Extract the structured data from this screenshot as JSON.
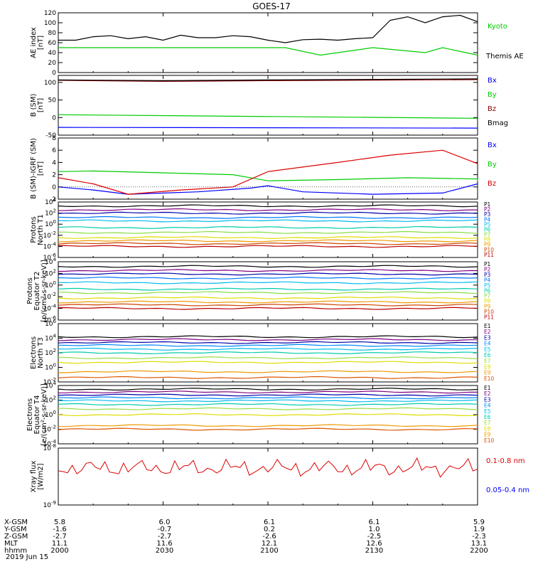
{
  "title": "GOES-17",
  "date_label": "2019 Jun 15",
  "ephemeris": {
    "rows": [
      "X-GSM",
      "Y-GSM",
      "Z-GSM",
      "MLT",
      "hhmm"
    ],
    "columns": [
      [
        "5.8",
        "-1.6",
        "-2.7",
        "11.1",
        "2000"
      ],
      [
        "6.0",
        "-0.7",
        "-2.7",
        "11.6",
        "2030"
      ],
      [
        "6.1",
        "0.2",
        "-2.6",
        "12.1",
        "2100"
      ],
      [
        "6.1",
        "1.0",
        "-2.5",
        "12.6",
        "2130"
      ],
      [
        "5.9",
        "1.9",
        "-2.3",
        "13.1",
        "2200"
      ]
    ]
  },
  "colors": {
    "black": "#000000",
    "green": "#00cc00",
    "blue": "#0000ff",
    "red": "#dd0000",
    "darkred": "#8b0000",
    "navy": "#000080",
    "purple": "#800080",
    "p_series": [
      "#000000",
      "#800080",
      "#0000aa",
      "#0077ff",
      "#00bbee",
      "#00ccaa",
      "#88dd44",
      "#dddd00",
      "#ee9900",
      "#cc4400",
      "#bb0000"
    ],
    "e_series": [
      "#000000",
      "#800080",
      "#0000aa",
      "#0088ff",
      "#00bbee",
      "#00ccaa",
      "#99dd44",
      "#dddd00",
      "#ee9900",
      "#dd5500",
      "#bb0000"
    ]
  },
  "chart_data": [
    {
      "type": "line",
      "ylabel": [
        "AE index",
        "[nT]"
      ],
      "ylim": [
        0,
        120
      ],
      "y_ticks": [
        "0",
        "20",
        "40",
        "60",
        "80",
        "100",
        "120"
      ],
      "x_range": [
        "2000",
        "2200"
      ],
      "series": [
        {
          "name": "Kyoto proxy AE",
          "x": [
            2000,
            2005,
            2010,
            2015,
            2020,
            2025,
            2030,
            2035,
            2040,
            2045,
            2050,
            2055,
            2100,
            2105,
            2110,
            2115,
            2120,
            2125,
            2130,
            2135,
            2140,
            2145,
            2150,
            2155,
            2200
          ],
          "values": [
            65,
            65,
            72,
            74,
            68,
            72,
            65,
            75,
            70,
            70,
            74,
            72,
            65,
            60,
            66,
            67,
            65,
            68,
            70,
            105,
            112,
            100,
            112,
            115,
            102
          ]
        },
        {
          "name": "Themis AE",
          "x": [
            2000,
            2050,
            2105,
            2115,
            2130,
            2145,
            2150,
            2200
          ],
          "values": [
            50,
            50,
            50,
            35,
            50,
            40,
            50,
            35
          ]
        }
      ]
    },
    {
      "type": "line",
      "ylabel": [
        "B (SM)",
        "[nT]"
      ],
      "ylim": [
        -50,
        120
      ],
      "y_ticks": [
        "-50",
        "0",
        "50",
        "100"
      ],
      "series": [
        {
          "name": "Bx",
          "x": [
            2000,
            2200
          ],
          "values": [
            -28,
            -30
          ]
        },
        {
          "name": "By",
          "x": [
            2000,
            2200
          ],
          "values": [
            8,
            -2
          ]
        },
        {
          "name": "Bz",
          "x": [
            2000,
            2030,
            2100,
            2200
          ],
          "values": [
            106,
            103,
            105,
            108
          ]
        },
        {
          "name": "Bmag",
          "x": [
            2000,
            2030,
            2100,
            2200
          ],
          "values": [
            107,
            105,
            107,
            110
          ]
        }
      ]
    },
    {
      "type": "line",
      "ylabel": [
        "B (SM)-IGRF (SM)",
        "[nT]"
      ],
      "ylim": [
        -2,
        8
      ],
      "y_ticks": [
        "-2",
        "0",
        "2",
        "4",
        "6",
        "8"
      ],
      "series": [
        {
          "name": "Bx",
          "x": [
            2000,
            2010,
            2020,
            2040,
            2055,
            2100,
            2110,
            2130,
            2150,
            2200
          ],
          "values": [
            0,
            -0.5,
            -1.2,
            -0.8,
            -0.2,
            0.2,
            -0.8,
            -1.2,
            -1.0,
            0.5
          ]
        },
        {
          "name": "By",
          "x": [
            2000,
            2010,
            2030,
            2050,
            2100,
            2120,
            2140,
            2160,
            2200
          ],
          "values": [
            2.5,
            2.6,
            2.3,
            2.0,
            1.0,
            1.2,
            1.5,
            1.3,
            1.0
          ]
        },
        {
          "name": "Bz",
          "x": [
            2000,
            2010,
            2020,
            2035,
            2050,
            2100,
            2120,
            2135,
            2150,
            2200
          ],
          "values": [
            1.5,
            0.5,
            -1.2,
            -0.5,
            0.0,
            2.5,
            4.0,
            5.2,
            6.0,
            3.8
          ]
        }
      ]
    },
    {
      "type": "line",
      "ylabel": [
        "Protons",
        "North T1"
      ],
      "log": true,
      "ylim_log10": [
        -6,
        4
      ],
      "y_ticks": [
        "10^-6",
        "10^-4",
        "10^-2",
        "10^0",
        "10^2",
        "10^4"
      ],
      "legend": [
        "P1",
        "P2",
        "P3",
        "P4",
        "P5",
        "P6",
        "P7",
        "P8",
        "P9",
        "P10",
        "P11"
      ],
      "series_log10": [
        3.3,
        2.6,
        2.0,
        1.2,
        0.6,
        -0.6,
        -1.5,
        -2.4,
        -3.0,
        -3.5,
        -4.0
      ]
    },
    {
      "type": "line",
      "ylabel": [
        "Protons",
        "Equator T2",
        "[p/(cm²-s-sr-keV)]"
      ],
      "log": true,
      "ylim_log10": [
        -6,
        4
      ],
      "y_ticks": [
        "10^-6",
        "10^-4",
        "10^-2",
        "10^0",
        "10^2",
        "10^4"
      ],
      "legend": [
        "P1",
        "P2",
        "P3",
        "P4",
        "P5",
        "P6",
        "P7",
        "P8",
        "P9",
        "P10",
        "P11"
      ],
      "series_log10": [
        3.2,
        2.5,
        1.9,
        1.2,
        0.4,
        -0.7,
        -1.3,
        -2.2,
        -2.9,
        -3.4,
        -4.0
      ]
    },
    {
      "type": "line",
      "ylabel": [
        "Electrons",
        "North T3"
      ],
      "log": true,
      "ylim_log10": [
        -2,
        6
      ],
      "y_ticks": [
        "10^-2",
        "10^0",
        "10^2",
        "10^4",
        "10^6"
      ],
      "legend": [
        "E1",
        "E2",
        "E3",
        "E4",
        "E5",
        "E6",
        "E7",
        "E8",
        "E9",
        "E10"
      ],
      "series_log10": [
        4.2,
        3.8,
        3.4,
        3.0,
        2.5,
        2.0,
        1.3,
        0.7,
        -0.6,
        -1.4
      ]
    },
    {
      "type": "line",
      "ylabel": [
        "Electrons",
        "Equator T4",
        "[e/(cm²-s-sr-keV)]"
      ],
      "log": true,
      "ylim_log10": [
        -4,
        4
      ],
      "y_ticks": [
        "10^-4",
        "10^-2",
        "10^0",
        "10^2",
        "10^4"
      ],
      "legend": [
        "E1",
        "E2",
        "E3",
        "E4",
        "E5",
        "E6",
        "E7",
        "E8",
        "E9",
        "E10"
      ],
      "series_log10": [
        3.5,
        3.1,
        2.7,
        2.3,
        1.9,
        1.4,
        0.8,
        0.0,
        -1.5,
        -2.0
      ]
    },
    {
      "type": "line",
      "ylabel": [
        "Xray flux",
        "[W/m2]"
      ],
      "log": true,
      "ylim_log10": [
        -9,
        -8
      ],
      "y_ticks": [
        "10^-9",
        "10^-8"
      ],
      "series": [
        {
          "name": "0.1-0.8 nm",
          "level_log10": -8.35
        },
        {
          "name": "0.05-0.4 nm"
        }
      ]
    }
  ]
}
